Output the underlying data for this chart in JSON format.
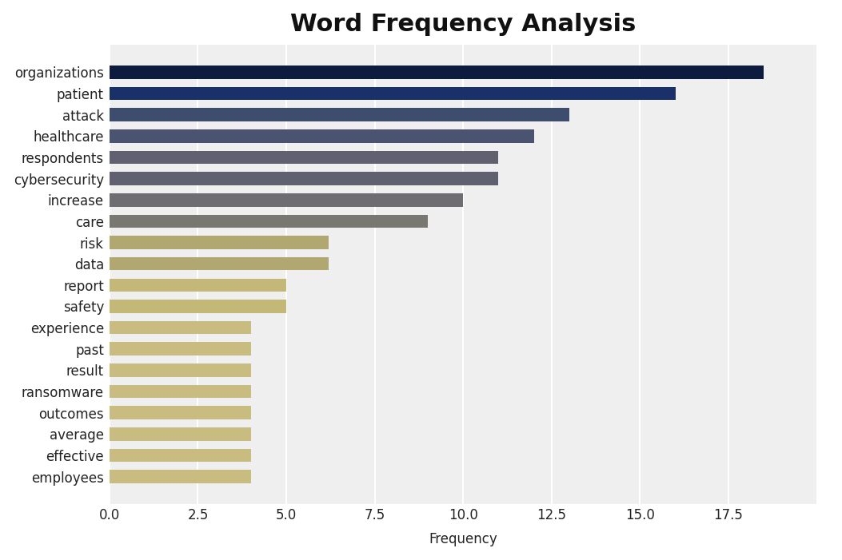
{
  "categories": [
    "organizations",
    "patient",
    "attack",
    "healthcare",
    "respondents",
    "cybersecurity",
    "increase",
    "care",
    "risk",
    "data",
    "report",
    "safety",
    "experience",
    "past",
    "result",
    "ransomware",
    "outcomes",
    "average",
    "effective",
    "employees"
  ],
  "values": [
    18.5,
    16.0,
    13.0,
    12.0,
    11.0,
    11.0,
    10.0,
    9.0,
    6.2,
    6.2,
    5.0,
    5.0,
    4.0,
    4.0,
    4.0,
    4.0,
    4.0,
    4.0,
    4.0,
    4.0
  ],
  "colors": [
    "#0d1b3e",
    "#1a3068",
    "#3d4d6e",
    "#4a5470",
    "#606070",
    "#606070",
    "#6e6e72",
    "#787870",
    "#b0a870",
    "#b0a870",
    "#c4b878",
    "#c4b878",
    "#c8bc80",
    "#c8bc80",
    "#c8bc80",
    "#c8bc80",
    "#c8bc80",
    "#c8bc80",
    "#c8bc80",
    "#c8bc80"
  ],
  "title": "Word Frequency Analysis",
  "xlabel": "Frequency",
  "xlim": [
    0,
    20
  ],
  "xticks": [
    0.0,
    2.5,
    5.0,
    7.5,
    10.0,
    12.5,
    15.0,
    17.5
  ],
  "plot_bg_color": "#efefef",
  "title_bg_color": "#ffffff",
  "title_fontsize": 22,
  "label_fontsize": 12,
  "tick_fontsize": 12,
  "bar_height": 0.62
}
